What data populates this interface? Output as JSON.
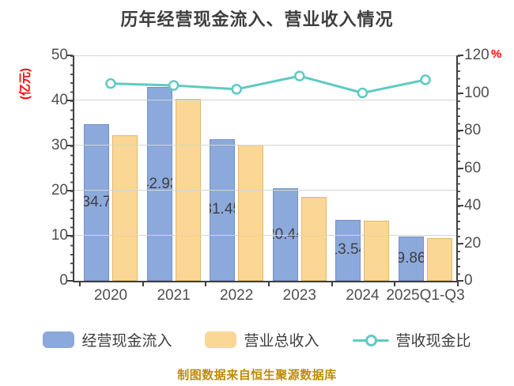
{
  "title": "历年经营现金流入、营业收入情况",
  "footer": {
    "source": "制图数据来自恒生聚源数据库"
  },
  "legend": [
    {
      "label": "经营现金流入",
      "type": "bar",
      "color": "#8CA9DC"
    },
    {
      "label": "营业总收入",
      "type": "bar",
      "color": "#FBD795"
    },
    {
      "label": "营收现金比",
      "type": "line",
      "color": "#5FCAC3"
    }
  ],
  "palette": {
    "background": "#FFFFFF",
    "title_text": "#3F3F3F",
    "axis_text": "#4F4F4F",
    "axis_line": "#3F3F3F",
    "gridline": "#D4D4D4",
    "unit_red": "#FF0000",
    "source_gold": "#BE8C0A"
  },
  "chart_data": {
    "type": "combo",
    "categories": [
      "2020",
      "2021",
      "2022",
      "2023",
      "2024",
      "2025Q1-Q3"
    ],
    "series": [
      {
        "name": "经营现金流入",
        "type": "bar",
        "axis": "left",
        "color": "#8CA9DC",
        "border": "#7490C4",
        "values": [
          34.7,
          42.93,
          31.45,
          20.44,
          13.54,
          9.86
        ],
        "labels": [
          "34.7",
          "42.93",
          "31.45",
          "20.44",
          "13.54",
          "9.86"
        ]
      },
      {
        "name": "营业总收入",
        "type": "bar",
        "axis": "left",
        "color": "#FBD795",
        "border": "#E3B76C",
        "values": [
          32.3,
          40.3,
          30.2,
          18.6,
          13.4,
          9.4
        ]
      },
      {
        "name": "营收现金比",
        "type": "line",
        "axis": "right",
        "color": "#5FCAC3",
        "marker_fill": "#FFFFFF",
        "values": [
          105,
          104,
          102,
          109,
          100,
          107
        ]
      }
    ],
    "left_axis": {
      "label": "(亿元)",
      "color": "#FF0000",
      "ticks": [
        0,
        10,
        20,
        30,
        40,
        50
      ],
      "max": 50
    },
    "right_axis": {
      "label": "%",
      "color": "#FF0000",
      "ticks": [
        0,
        20,
        40,
        60,
        80,
        100,
        120
      ],
      "max": 120
    },
    "grid": true,
    "legend_position": "bottom"
  }
}
